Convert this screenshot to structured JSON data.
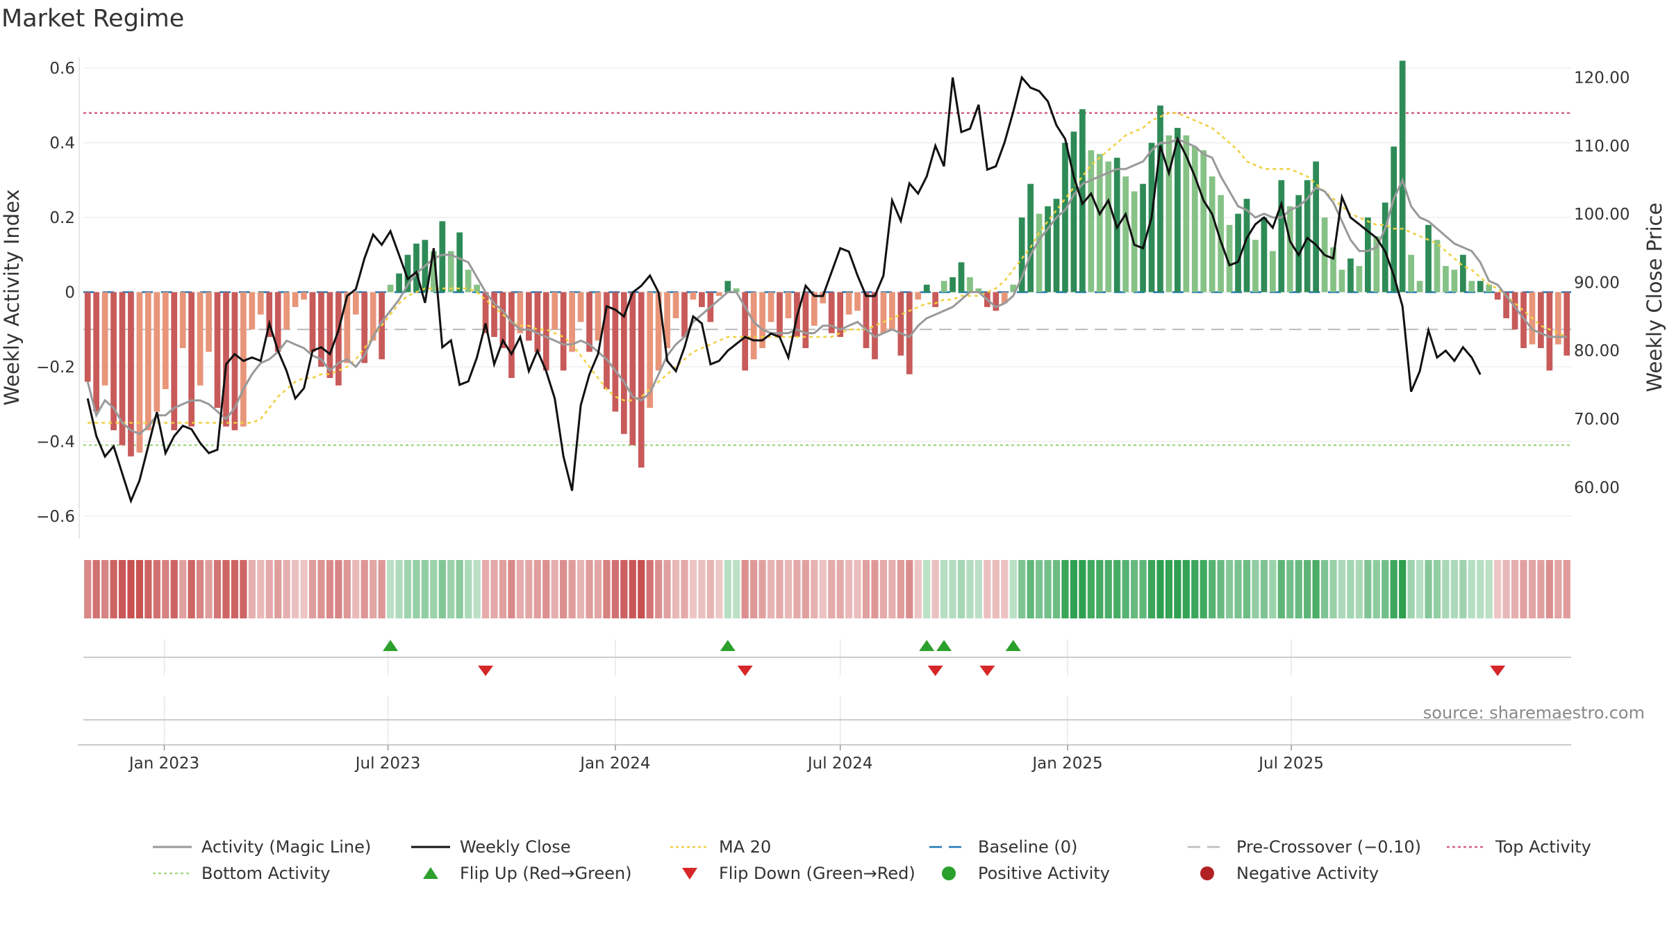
{
  "chart_data": {
    "type": "bar",
    "title": "Market Regime",
    "ylabel": "Weekly Activity Index",
    "y2label": "Weekly Close Price",
    "ylim": [
      -0.66,
      0.63
    ],
    "y2lim": [
      52.5,
      123.0
    ],
    "yticks": [
      "0.6",
      "0.4",
      "0.2",
      "0",
      "−0.2",
      "−0.4",
      "−0.6"
    ],
    "y2ticks": [
      "120.00",
      "110.00",
      "100.00",
      "90.00",
      "80.00",
      "70.00",
      "60.00"
    ],
    "xticks": [
      "Jan 2023",
      "Jul 2023",
      "Jan 2024",
      "Jul 2024",
      "Jan 2025",
      "Jul 2025"
    ],
    "x_start": "2022-10-31",
    "x_end": "2025-09-08",
    "interval_days": 7,
    "source": "source: sharemaestro.com",
    "reference_lines": {
      "baseline": 0,
      "pre_crossover": -0.1,
      "top_activity": 0.48,
      "bottom_activity": -0.41
    },
    "colors": {
      "neg_strong": "#c85a5a",
      "neg_weak": "#e8957a",
      "pos_strong": "#2e8b57",
      "pos_weak": "#86c286",
      "close": "#111111",
      "magic": "#999999",
      "ma20": "#f0d040",
      "baseline": "#1f77b4",
      "pre_crossover": "#bbbbbb",
      "top": "#d06080",
      "bottom": "#a8d88a",
      "flip_up": "#2ca02c",
      "flip_down": "#d62728"
    },
    "activity": [
      -0.24,
      -0.32,
      -0.25,
      -0.37,
      -0.41,
      -0.44,
      -0.43,
      -0.37,
      -0.32,
      -0.26,
      -0.37,
      -0.15,
      -0.36,
      -0.25,
      -0.16,
      -0.31,
      -0.36,
      -0.37,
      -0.36,
      -0.1,
      -0.06,
      -0.12,
      -0.16,
      -0.1,
      -0.04,
      -0.02,
      -0.16,
      -0.2,
      -0.23,
      -0.25,
      -0.19,
      -0.06,
      -0.19,
      -0.13,
      -0.18,
      0.02,
      0.05,
      0.1,
      0.13,
      0.14,
      0.11,
      0.19,
      0.11,
      0.16,
      0.06,
      0.02,
      -0.11,
      -0.12,
      -0.15,
      -0.23,
      -0.11,
      -0.13,
      -0.16,
      -0.21,
      -0.1,
      -0.21,
      -0.16,
      -0.08,
      -0.16,
      -0.13,
      -0.26,
      -0.32,
      -0.38,
      -0.41,
      -0.47,
      -0.31,
      -0.21,
      -0.15,
      -0.07,
      -0.12,
      -0.02,
      -0.04,
      -0.08,
      -0.01,
      0.03,
      0.01,
      -0.21,
      -0.18,
      -0.15,
      -0.08,
      -0.12,
      -0.07,
      -0.12,
      -0.15,
      -0.09,
      -0.03,
      -0.11,
      -0.12,
      -0.06,
      -0.05,
      -0.15,
      -0.18,
      -0.11,
      -0.1,
      -0.17,
      -0.22,
      -0.02,
      0.02,
      -0.04,
      0.03,
      0.04,
      0.08,
      0.04,
      0.01,
      -0.04,
      -0.05,
      -0.03,
      0.02,
      0.2,
      0.29,
      0.21,
      0.23,
      0.25,
      0.4,
      0.43,
      0.49,
      0.38,
      0.37,
      0.35,
      0.36,
      0.31,
      0.27,
      0.29,
      0.4,
      0.5,
      0.42,
      0.44,
      0.42,
      0.39,
      0.38,
      0.31,
      0.26,
      0.18,
      0.21,
      0.25,
      0.14,
      0.2,
      0.11,
      0.3,
      0.23,
      0.26,
      0.3,
      0.35,
      0.2,
      0.12,
      0.06,
      0.09,
      0.07,
      0.2,
      0.15,
      0.24,
      0.39,
      0.62,
      0.1,
      0.03,
      0.18,
      0.14,
      0.07,
      0.06,
      0.1,
      0.03,
      0.03,
      0.02,
      -0.02,
      -0.07,
      -0.1,
      -0.15,
      -0.14,
      -0.15,
      -0.21,
      -0.14,
      -0.17
    ],
    "magic_line": [
      -0.24,
      -0.33,
      -0.29,
      -0.31,
      -0.35,
      -0.37,
      -0.38,
      -0.36,
      -0.33,
      -0.33,
      -0.31,
      -0.3,
      -0.29,
      -0.29,
      -0.3,
      -0.32,
      -0.34,
      -0.31,
      -0.26,
      -0.22,
      -0.19,
      -0.18,
      -0.16,
      -0.13,
      -0.14,
      -0.15,
      -0.17,
      -0.18,
      -0.21,
      -0.19,
      -0.18,
      -0.2,
      -0.17,
      -0.12,
      -0.08,
      -0.05,
      -0.02,
      0.02,
      0.05,
      0.07,
      0.09,
      0.1,
      0.1,
      0.09,
      0.08,
      0.04,
      0.0,
      -0.03,
      -0.05,
      -0.08,
      -0.1,
      -0.1,
      -0.11,
      -0.12,
      -0.13,
      -0.14,
      -0.14,
      -0.13,
      -0.14,
      -0.16,
      -0.18,
      -0.21,
      -0.24,
      -0.28,
      -0.29,
      -0.27,
      -0.22,
      -0.17,
      -0.14,
      -0.12,
      -0.08,
      -0.06,
      -0.04,
      -0.02,
      -0.0,
      0.0,
      -0.04,
      -0.08,
      -0.1,
      -0.11,
      -0.11,
      -0.11,
      -0.1,
      -0.11,
      -0.11,
      -0.09,
      -0.09,
      -0.1,
      -0.09,
      -0.08,
      -0.1,
      -0.12,
      -0.11,
      -0.1,
      -0.11,
      -0.12,
      -0.09,
      -0.07,
      -0.06,
      -0.05,
      -0.04,
      -0.02,
      -0.0,
      0.0,
      -0.02,
      -0.04,
      -0.03,
      -0.01,
      0.04,
      0.1,
      0.14,
      0.17,
      0.2,
      0.22,
      0.26,
      0.29,
      0.3,
      0.31,
      0.32,
      0.33,
      0.33,
      0.34,
      0.35,
      0.38,
      0.4,
      0.4,
      0.41,
      0.4,
      0.39,
      0.37,
      0.36,
      0.31,
      0.27,
      0.23,
      0.22,
      0.2,
      0.21,
      0.2,
      0.2,
      0.22,
      0.23,
      0.25,
      0.28,
      0.27,
      0.24,
      0.19,
      0.14,
      0.11,
      0.11,
      0.12,
      0.17,
      0.25,
      0.3,
      0.23,
      0.2,
      0.19,
      0.17,
      0.15,
      0.13,
      0.12,
      0.11,
      0.08,
      0.03,
      0.02,
      -0.01,
      -0.04,
      -0.07,
      -0.1,
      -0.11,
      -0.12,
      -0.12,
      -0.12
    ],
    "ma20": [
      -0.35,
      -0.35,
      -0.35,
      -0.35,
      -0.35,
      -0.35,
      -0.35,
      -0.35,
      -0.35,
      -0.35,
      -0.35,
      -0.35,
      -0.35,
      -0.35,
      -0.35,
      -0.35,
      -0.35,
      -0.35,
      -0.35,
      -0.35,
      -0.34,
      -0.31,
      -0.28,
      -0.26,
      -0.24,
      -0.23,
      -0.23,
      -0.22,
      -0.22,
      -0.21,
      -0.2,
      -0.18,
      -0.15,
      -0.12,
      -0.09,
      -0.06,
      -0.03,
      -0.01,
      0.0,
      0.01,
      0.01,
      0.01,
      0.01,
      0.01,
      0.01,
      0.0,
      -0.02,
      -0.04,
      -0.06,
      -0.08,
      -0.09,
      -0.09,
      -0.1,
      -0.1,
      -0.11,
      -0.12,
      -0.14,
      -0.17,
      -0.2,
      -0.23,
      -0.26,
      -0.28,
      -0.29,
      -0.29,
      -0.28,
      -0.26,
      -0.24,
      -0.22,
      -0.2,
      -0.18,
      -0.16,
      -0.15,
      -0.14,
      -0.13,
      -0.12,
      -0.12,
      -0.12,
      -0.12,
      -0.12,
      -0.12,
      -0.12,
      -0.12,
      -0.12,
      -0.12,
      -0.12,
      -0.12,
      -0.12,
      -0.11,
      -0.1,
      -0.1,
      -0.1,
      -0.09,
      -0.08,
      -0.07,
      -0.06,
      -0.05,
      -0.04,
      -0.03,
      -0.03,
      -0.02,
      -0.02,
      -0.01,
      -0.01,
      -0.01,
      -0.0,
      0.01,
      0.03,
      0.06,
      0.09,
      0.12,
      0.16,
      0.19,
      0.22,
      0.25,
      0.28,
      0.31,
      0.34,
      0.36,
      0.38,
      0.4,
      0.42,
      0.43,
      0.44,
      0.46,
      0.47,
      0.48,
      0.48,
      0.47,
      0.46,
      0.45,
      0.44,
      0.42,
      0.4,
      0.38,
      0.35,
      0.34,
      0.33,
      0.33,
      0.33,
      0.33,
      0.32,
      0.31,
      0.29,
      0.27,
      0.25,
      0.23,
      0.21,
      0.2,
      0.19,
      0.18,
      0.18,
      0.17,
      0.17,
      0.16,
      0.15,
      0.14,
      0.13,
      0.11,
      0.09,
      0.07,
      0.06,
      0.04,
      0.02,
      0.01,
      -0.01,
      -0.03,
      -0.05,
      -0.07,
      -0.09,
      -0.1,
      -0.11,
      -0.12
    ],
    "close": [
      73.0,
      67.5,
      64.5,
      66.0,
      62.0,
      58.0,
      61.0,
      66.0,
      71.0,
      65.0,
      67.5,
      69.0,
      68.5,
      66.5,
      65.0,
      65.5,
      78.0,
      79.5,
      78.5,
      79.0,
      78.5,
      84.0,
      80.0,
      77.0,
      73.0,
      74.5,
      80.0,
      80.5,
      79.5,
      83.0,
      88.0,
      89.0,
      93.5,
      97.0,
      95.5,
      97.5,
      94.0,
      90.5,
      91.5,
      87.0,
      95.0,
      80.5,
      81.5,
      75.0,
      75.5,
      79.0,
      84.0,
      78.0,
      81.5,
      79.5,
      82.0,
      77.0,
      80.0,
      77.0,
      73.0,
      64.5,
      59.5,
      72.0,
      76.5,
      79.5,
      86.5,
      86.0,
      85.0,
      88.5,
      89.5,
      91.0,
      88.5,
      78.5,
      77.0,
      80.5,
      85.0,
      84.0,
      78.0,
      78.5,
      80.0,
      81.0,
      82.0,
      81.5,
      81.5,
      82.5,
      82.0,
      79.0,
      85.0,
      89.5,
      88.0,
      88.0,
      91.5,
      95.0,
      94.5,
      91.0,
      88.0,
      88.0,
      91.0,
      102.0,
      99.0,
      104.5,
      103.0,
      105.5,
      110.0,
      107.0,
      120.0,
      112.0,
      112.5,
      116.0,
      106.5,
      107.0,
      110.5,
      115.0,
      120.0,
      118.5,
      118.0,
      116.5,
      113.0,
      111.0,
      105.5,
      101.5,
      103.0,
      100.0,
      102.0,
      98.0,
      100.0,
      95.5,
      95.0,
      99.5,
      110.0,
      106.0,
      111.0,
      108.5,
      105.5,
      102.0,
      100.0,
      96.0,
      92.5,
      93.0,
      96.5,
      98.5,
      99.5,
      98.0,
      101.5,
      96.0,
      94.0,
      96.5,
      95.5,
      94.0,
      93.5,
      102.5,
      99.5,
      98.5,
      97.5,
      96.5,
      94.5,
      91.0,
      86.5,
      74.0,
      77.0,
      83.0,
      79.0,
      80.0,
      78.5,
      80.5,
      79.0,
      76.5
    ],
    "legend": [
      {
        "label": "Activity (Magic Line)",
        "kind": "line",
        "color": "#999999"
      },
      {
        "label": "Weekly Close",
        "kind": "line",
        "color": "#111111"
      },
      {
        "label": "MA 20",
        "kind": "dotted",
        "color": "#f0d040"
      },
      {
        "label": "Baseline (0)",
        "kind": "dashed",
        "color": "#1f77b4"
      },
      {
        "label": "Pre-Crossover (−0.10)",
        "kind": "dashed",
        "color": "#bbbbbb"
      },
      {
        "label": "Top Activity",
        "kind": "dotted",
        "color": "#d06080"
      },
      {
        "label": "Bottom Activity",
        "kind": "dotted",
        "color": "#a8d88a"
      },
      {
        "label": "Flip Up (Red→Green)",
        "kind": "tri-up",
        "color": "#2ca02c"
      },
      {
        "label": "Flip Down (Green→Red)",
        "kind": "tri-down",
        "color": "#d62728"
      },
      {
        "label": "Positive Activity",
        "kind": "dot",
        "color": "#2ca02c"
      },
      {
        "label": "Negative Activity",
        "kind": "dot",
        "color": "#b22222"
      }
    ]
  }
}
